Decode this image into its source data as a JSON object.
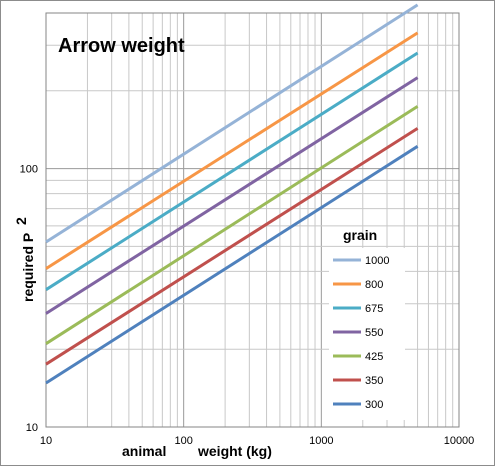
{
  "chart_data": {
    "type": "line",
    "title": "Arrow weight",
    "xlabel_prefix": "animal",
    "xlabel_suffix": "weight (kg)",
    "ylabel": "required P",
    "ylabel_sup": "2",
    "x_scale": "log",
    "y_scale": "log",
    "xlim": [
      10,
      10000
    ],
    "ylim": [
      10,
      400
    ],
    "x_ticks": [
      "10",
      "100",
      "1000",
      "10000"
    ],
    "y_ticks": [
      "10",
      "100"
    ],
    "grid": true,
    "legend": {
      "title": "grain",
      "placement": "right"
    },
    "series": [
      {
        "name": "1000",
        "color": "#95b3d7",
        "x": [
          10,
          5000
        ],
        "y": [
          52,
          430
        ]
      },
      {
        "name": "800",
        "color": "#f79646",
        "x": [
          10,
          5000
        ],
        "y": [
          41,
          335
        ]
      },
      {
        "name": "675",
        "color": "#4bacc6",
        "x": [
          10,
          5000
        ],
        "y": [
          34,
          280
        ]
      },
      {
        "name": "550",
        "color": "#8064a2",
        "x": [
          10,
          5000
        ],
        "y": [
          27.5,
          225
        ]
      },
      {
        "name": "425",
        "color": "#9bbb59",
        "x": [
          10,
          5000
        ],
        "y": [
          21,
          174
        ]
      },
      {
        "name": "350",
        "color": "#c0504d",
        "x": [
          10,
          5000
        ],
        "y": [
          17.5,
          143
        ]
      },
      {
        "name": "300",
        "color": "#4f81bd",
        "x": [
          10,
          5000
        ],
        "y": [
          14.8,
          122
        ]
      }
    ]
  }
}
